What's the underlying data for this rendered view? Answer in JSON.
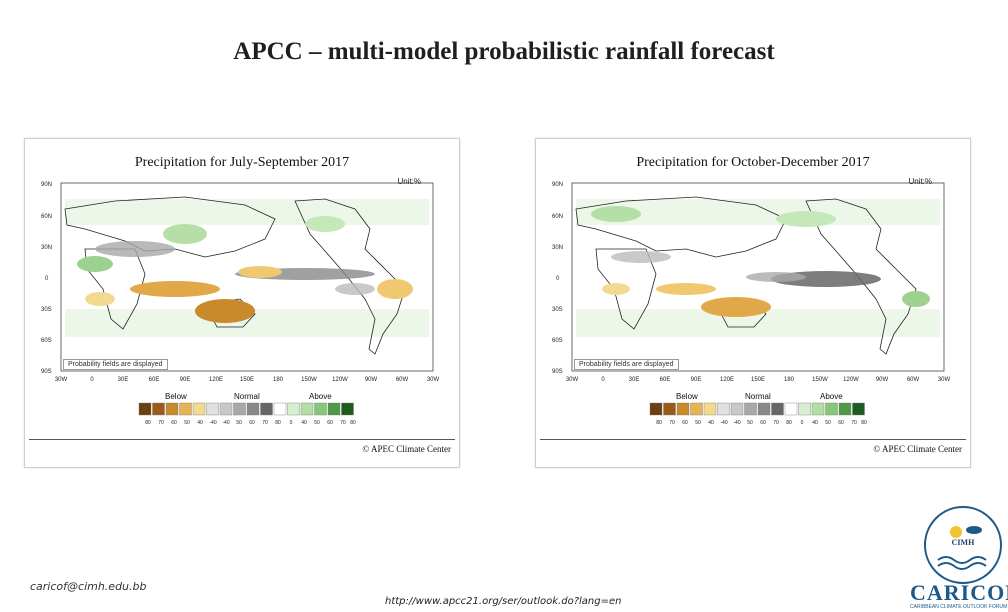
{
  "slide": {
    "title": "APCC – multi-model probabilistic rainfall forecast",
    "email": "caricof@cimh.edu.bb",
    "url": "http://www.apcc21.org/ser/outlook.do?lang=en"
  },
  "panels": [
    {
      "title": "Precipitation for July-September 2017",
      "unit": "Unit:%",
      "lat_labels": [
        "90N",
        "60N",
        "30N",
        "0",
        "30S",
        "60S",
        "90S"
      ],
      "lon_labels": [
        "30W",
        "0",
        "30E",
        "60E",
        "90E",
        "120E",
        "150E",
        "180",
        "150W",
        "120W",
        "90W",
        "60W",
        "30W"
      ],
      "note": "Probability fields are displayed",
      "legend": {
        "below": "Below",
        "normal": "Normal",
        "above": "Above",
        "ticks": [
          "80",
          "70",
          "60",
          "50",
          "40",
          "-40",
          "-40",
          "50",
          "60",
          "70",
          "80",
          "0",
          "40",
          "50",
          "60",
          "70",
          "80"
        ]
      },
      "copyright": "© APEC Climate Center"
    },
    {
      "title": "Precipitation for October-December 2017",
      "unit": "Unit:%",
      "lat_labels": [
        "90N",
        "60N",
        "30N",
        "0",
        "30S",
        "60S",
        "90S"
      ],
      "lon_labels": [
        "30W",
        "0",
        "30E",
        "60E",
        "90E",
        "120E",
        "150E",
        "180",
        "150W",
        "120W",
        "90W",
        "60W",
        "30W"
      ],
      "note": "Probability fields are displayed",
      "legend": {
        "below": "Below",
        "normal": "Normal",
        "above": "Above",
        "ticks": [
          "80",
          "70",
          "60",
          "50",
          "40",
          "-40",
          "-40",
          "50",
          "60",
          "70",
          "80",
          "0",
          "40",
          "50",
          "60",
          "70",
          "80"
        ]
      },
      "copyright": "© APEC Climate Center"
    }
  ],
  "logo": {
    "org": "CIMH",
    "name": "CARICOF",
    "tagline": "CARIBBEAN CLIMATE OUTLOOK FORUM"
  },
  "legend_colors": [
    "#6b3f10",
    "#9a5b18",
    "#c98a2b",
    "#e6b456",
    "#f3d990",
    "#e0e0e0",
    "#c8c8c8",
    "#a8a8a8",
    "#888888",
    "#666666",
    "#ffffff",
    "#d6efcf",
    "#b2e0a3",
    "#86c87a",
    "#4f9a46",
    "#1e5b1e"
  ]
}
